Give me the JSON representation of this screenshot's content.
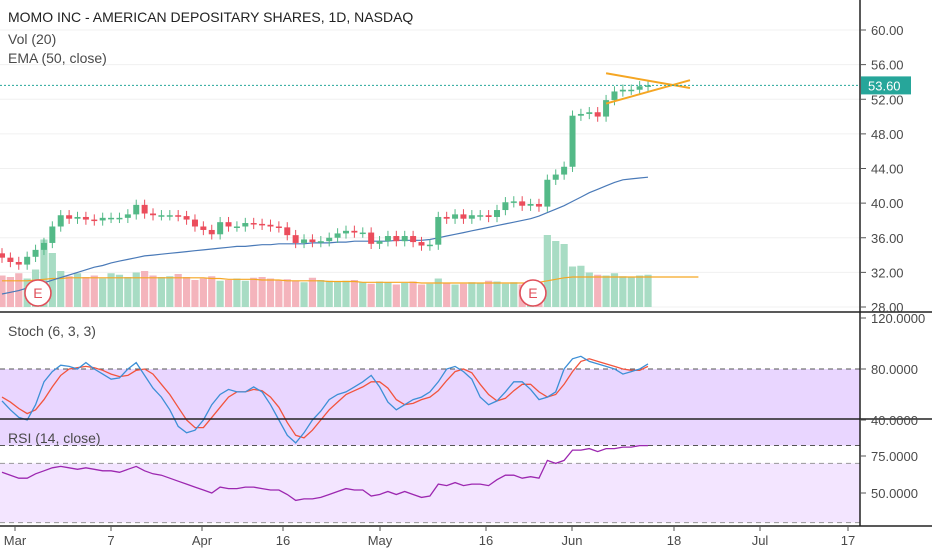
{
  "header": {
    "title": "MOMO INC - AMERICAN DEPOSITARY SHARES, 1D, NASDAQ",
    "vol_label": "Vol (20)",
    "ema_label": "EMA (50, close)"
  },
  "stoch": {
    "label": "Stoch (6, 3, 3)",
    "ticks": [
      "120.0000",
      "80.0000",
      "40.0000"
    ],
    "band": [
      20,
      80
    ]
  },
  "rsi": {
    "label": "RSI (14, close)",
    "ticks": [
      "75.0000",
      "50.0000"
    ],
    "band": [
      30,
      70
    ]
  },
  "price": {
    "ticks": [
      "60.00",
      "56.00",
      "52.00",
      "48.00",
      "44.00",
      "40.00",
      "36.00",
      "32.00",
      "28.00"
    ],
    "last": "53.60"
  },
  "xaxis": {
    "labels": [
      "Mar",
      "7",
      "Apr",
      "16",
      "May",
      "16",
      "Jun",
      "18",
      "Jul",
      "17"
    ]
  },
  "earnings_marker": "E",
  "colors": {
    "up": "#53b987",
    "down": "#eb4d5c",
    "ema": "#4a7ab8",
    "pattern": "#f5a623",
    "stoch_k": "#3d8fd6",
    "stoch_d": "#f2543d",
    "rsi": "#9c27b0",
    "band": "#e9d6ff",
    "last_price": "#26a69a"
  },
  "chart_data": [
    {
      "type": "candlestick",
      "title": "MOMO INC - AMERICAN DEPOSITARY SHARES, 1D, NASDAQ",
      "ylim": [
        27,
        63
      ],
      "x": [
        "Feb 26",
        "Feb 27",
        "Feb 28",
        "Mar 1",
        "Mar 2",
        "Mar 5",
        "Mar 6",
        "Mar 7",
        "Mar 8",
        "Mar 9",
        "Mar 12",
        "Mar 13",
        "Mar 14",
        "Mar 15",
        "Mar 16",
        "Mar 19",
        "Mar 20",
        "Mar 21",
        "Mar 22",
        "Mar 23",
        "Mar 26",
        "Mar 27",
        "Mar 28",
        "Mar 29",
        "Apr 2",
        "Apr 3",
        "Apr 4",
        "Apr 5",
        "Apr 6",
        "Apr 9",
        "Apr 10",
        "Apr 11",
        "Apr 12",
        "Apr 13",
        "Apr 16",
        "Apr 17",
        "Apr 18",
        "Apr 19",
        "Apr 20",
        "Apr 23",
        "Apr 24",
        "Apr 25",
        "Apr 26",
        "Apr 27",
        "Apr 30",
        "May 1",
        "May 2",
        "May 3",
        "May 4",
        "May 7",
        "May 8",
        "May 9",
        "May 10",
        "May 11",
        "May 14",
        "May 15",
        "May 16",
        "May 17",
        "May 18",
        "May 21",
        "May 22",
        "May 23",
        "May 24",
        "May 25",
        "May 29",
        "May 30",
        "May 31",
        "Jun 1",
        "Jun 4",
        "Jun 5",
        "Jun 6",
        "Jun 7",
        "Jun 8",
        "Jun 11",
        "Jun 12",
        "Jun 13",
        "Jun 14",
        "Jun 15"
      ],
      "open": [
        34.2,
        33.7,
        33.2,
        32.9,
        33.8,
        34.6,
        35.4,
        37.3,
        38.6,
        38.2,
        38.4,
        38.1,
        38.0,
        38.3,
        38.3,
        38.3,
        38.7,
        39.8,
        38.8,
        38.6,
        38.6,
        38.6,
        38.5,
        38.1,
        37.3,
        36.9,
        36.4,
        37.8,
        37.3,
        37.3,
        37.7,
        37.6,
        37.5,
        37.3,
        37.2,
        36.3,
        35.4,
        35.8,
        35.5,
        35.6,
        36.0,
        36.5,
        36.8,
        36.6,
        36.6,
        35.3,
        35.6,
        36.2,
        35.6,
        36.2,
        35.5,
        35.1,
        35.2,
        38.4,
        38.2,
        38.7,
        38.2,
        38.6,
        38.6,
        38.4,
        39.2,
        40.1,
        40.2,
        39.7,
        39.9,
        39.6,
        42.7,
        43.3,
        44.2,
        50.1,
        50.3,
        50.5,
        50.0,
        51.9,
        52.9,
        53.1,
        53.1,
        53.5
      ],
      "close": [
        33.7,
        33.2,
        32.9,
        33.8,
        34.6,
        35.4,
        37.3,
        38.6,
        38.2,
        38.4,
        38.1,
        38.0,
        38.3,
        38.3,
        38.3,
        38.7,
        39.8,
        38.8,
        38.6,
        38.6,
        38.6,
        38.5,
        38.1,
        37.3,
        36.9,
        36.4,
        37.8,
        37.3,
        37.3,
        37.7,
        37.6,
        37.5,
        37.3,
        37.2,
        36.3,
        35.4,
        35.8,
        35.5,
        35.6,
        36.0,
        36.5,
        36.8,
        36.6,
        36.6,
        35.3,
        35.6,
        36.2,
        35.6,
        36.2,
        35.5,
        35.1,
        35.2,
        38.4,
        38.2,
        38.7,
        38.2,
        38.6,
        38.6,
        38.4,
        39.2,
        40.1,
        40.2,
        39.7,
        39.9,
        39.6,
        42.7,
        43.3,
        44.2,
        50.1,
        50.3,
        50.5,
        50.0,
        51.9,
        52.9,
        53.1,
        53.1,
        53.5,
        53.6
      ],
      "ema": [
        29.5,
        29.7,
        29.9,
        30.2,
        30.5,
        30.8,
        31.1,
        31.4,
        31.7,
        32.0,
        32.3,
        32.6,
        32.8,
        33.1,
        33.3,
        33.5,
        33.7,
        33.9,
        34.0,
        34.1,
        34.2,
        34.3,
        34.4,
        34.5,
        34.6,
        34.7,
        34.8,
        34.9,
        35.0,
        35.0,
        35.1,
        35.2,
        35.2,
        35.3,
        35.3,
        35.3,
        35.3,
        35.4,
        35.4,
        35.4,
        35.5,
        35.5,
        35.6,
        35.6,
        35.6,
        35.6,
        35.6,
        35.7,
        35.7,
        35.7,
        35.7,
        35.8,
        36.0,
        36.2,
        36.4,
        36.6,
        36.8,
        37.0,
        37.2,
        37.4,
        37.6,
        37.8,
        38.0,
        38.2,
        38.5,
        38.9,
        39.3,
        39.7,
        40.2,
        40.7,
        41.2,
        41.6,
        42.0,
        42.4,
        42.7,
        42.8,
        42.9,
        43.0
      ],
      "volume": [
        4.2,
        4.0,
        4.5,
        3.8,
        5.0,
        9.0,
        7.2,
        4.8,
        4.1,
        4.5,
        4.0,
        4.2,
        3.8,
        4.5,
        4.3,
        4.0,
        4.6,
        4.8,
        4.2,
        4.0,
        4.1,
        4.4,
        4.0,
        3.6,
        3.8,
        4.1,
        3.5,
        3.6,
        3.8,
        3.5,
        3.9,
        4.0,
        3.8,
        3.6,
        3.7,
        3.5,
        3.3,
        3.9,
        3.6,
        3.5,
        3.4,
        3.5,
        3.6,
        3.3,
        3.1,
        3.4,
        3.3,
        3.0,
        3.2,
        3.4,
        3.0,
        3.1,
        3.8,
        3.2,
        3.0,
        3.1,
        3.3,
        3.2,
        3.5,
        3.4,
        3.1,
        3.3,
        3.0,
        3.2,
        3.3,
        9.6,
        8.8,
        8.4,
        5.4,
        5.5,
        4.6,
        4.3,
        4.2,
        4.5,
        4.1,
        4.0,
        4.2,
        4.3
      ],
      "volume_ma": [
        3.5,
        3.5,
        3.5,
        3.5,
        3.6,
        3.7,
        3.8,
        3.8,
        3.9,
        3.9,
        3.9,
        3.9,
        3.9,
        3.9,
        3.9,
        3.9,
        3.9,
        3.9,
        3.9,
        3.9,
        3.9,
        3.9,
        3.9,
        3.9,
        3.9,
        3.8,
        3.8,
        3.7,
        3.7,
        3.7,
        3.7,
        3.6,
        3.6,
        3.6,
        3.5,
        3.5,
        3.5,
        3.5,
        3.5,
        3.4,
        3.4,
        3.4,
        3.4,
        3.3,
        3.3,
        3.3,
        3.3,
        3.3,
        3.3,
        3.3,
        3.2,
        3.2,
        3.2,
        3.2,
        3.2,
        3.2,
        3.2,
        3.2,
        3.2,
        3.2,
        3.2,
        3.2,
        3.2,
        3.2,
        3.3,
        3.5,
        3.7,
        3.9,
        4.0,
        4.0,
        4.0,
        4.0,
        4.0,
        4.0,
        4.0,
        4.0,
        4.0,
        4.0
      ],
      "last_price": 53.6,
      "earnings": [
        "Mar 5",
        "May 29"
      ],
      "pattern": {
        "type": "triangle",
        "upper": [
          [
            "Jun 8",
            55.0
          ],
          [
            "Jun 22",
            53.3
          ]
        ],
        "lower": [
          [
            "Jun 8",
            51.5
          ],
          [
            "Jun 22",
            54.2
          ]
        ]
      }
    },
    {
      "type": "line",
      "title": "Stoch (6, 3, 3)",
      "ylim": [
        12,
        122
      ],
      "series": [
        {
          "name": "%K",
          "values": [
            55,
            48,
            42,
            40,
            52,
            70,
            78,
            83,
            82,
            80,
            85,
            80,
            76,
            72,
            73,
            80,
            85,
            75,
            65,
            58,
            48,
            35,
            30,
            32,
            40,
            52,
            60,
            64,
            62,
            62,
            66,
            62,
            52,
            40,
            28,
            22,
            30,
            40,
            47,
            56,
            60,
            62,
            66,
            70,
            75,
            66,
            54,
            48,
            52,
            56,
            58,
            62,
            70,
            80,
            82,
            78,
            72,
            58,
            52,
            55,
            62,
            70,
            70,
            64,
            56,
            58,
            62,
            80,
            88,
            90,
            86,
            84,
            82,
            80,
            76,
            78,
            80,
            84
          ]
        },
        {
          "name": "%D",
          "values": [
            58,
            54,
            49,
            45,
            48,
            56,
            66,
            75,
            80,
            81,
            82,
            81,
            79,
            76,
            74,
            75,
            79,
            80,
            76,
            68,
            60,
            50,
            40,
            34,
            34,
            42,
            50,
            58,
            62,
            62,
            64,
            63,
            58,
            50,
            38,
            28,
            26,
            32,
            40,
            48,
            54,
            60,
            63,
            66,
            70,
            70,
            65,
            56,
            52,
            53,
            56,
            58,
            63,
            71,
            78,
            80,
            77,
            68,
            60,
            55,
            57,
            63,
            68,
            68,
            62,
            58,
            60,
            68,
            78,
            86,
            88,
            86,
            84,
            82,
            80,
            79,
            79,
            82
          ]
        }
      ]
    },
    {
      "type": "line",
      "title": "RSI (14, close)",
      "ylim": [
        35,
        85
      ],
      "series": [
        {
          "name": "RSI",
          "values": [
            64,
            62,
            60,
            60,
            63,
            65,
            67,
            68,
            67,
            66,
            67,
            66,
            65,
            65,
            64,
            66,
            68,
            65,
            63,
            62,
            60,
            58,
            56,
            54,
            52,
            50,
            54,
            53,
            53,
            54,
            54,
            53,
            52,
            52,
            49,
            45,
            46,
            46,
            47,
            49,
            51,
            53,
            52,
            52,
            48,
            49,
            51,
            49,
            51,
            49,
            47,
            48,
            56,
            55,
            57,
            55,
            56,
            56,
            55,
            59,
            62,
            62,
            60,
            61,
            60,
            72,
            70,
            72,
            79,
            79,
            80,
            78,
            80,
            80,
            81,
            81,
            82,
            82
          ]
        }
      ]
    }
  ]
}
